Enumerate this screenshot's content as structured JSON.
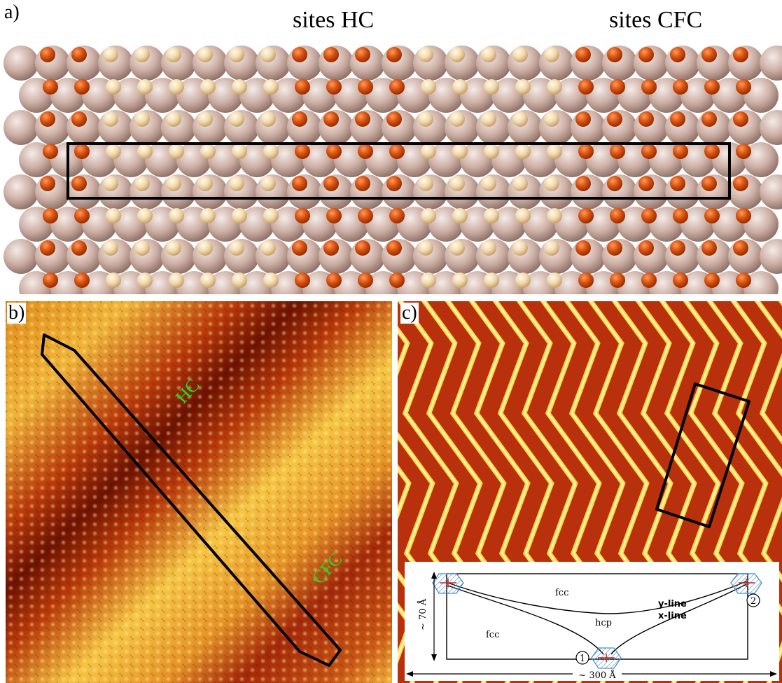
{
  "panel_a": {
    "letter": "a)",
    "label_hc": "sites HC",
    "label_cfc": "sites CFC"
  },
  "panel_b": {
    "letter": "b)",
    "label_hc": "HC",
    "label_cfc": "CFC",
    "label_color": "#22dd22"
  },
  "panel_c": {
    "letter": "c)",
    "inset": {
      "fcc_top": "fcc",
      "fcc_left": "fcc",
      "hcp": "hcp",
      "y_line": "y-line",
      "x_line": "x-line",
      "marker_1": "1",
      "marker_2": "2",
      "height_dim": "~ 70 Å",
      "width_dim": "~ 300 Å"
    }
  },
  "colors": {
    "substrate_atom": "#c9aaa0",
    "adatom_dark": "#d24a12",
    "adatom_light": "#f3d9aa",
    "stm_dark": "#5a0a02",
    "stm_mid": "#d45e10",
    "stm_bright": "#ffee70",
    "stripe_hatch": "#4a8fd0"
  }
}
